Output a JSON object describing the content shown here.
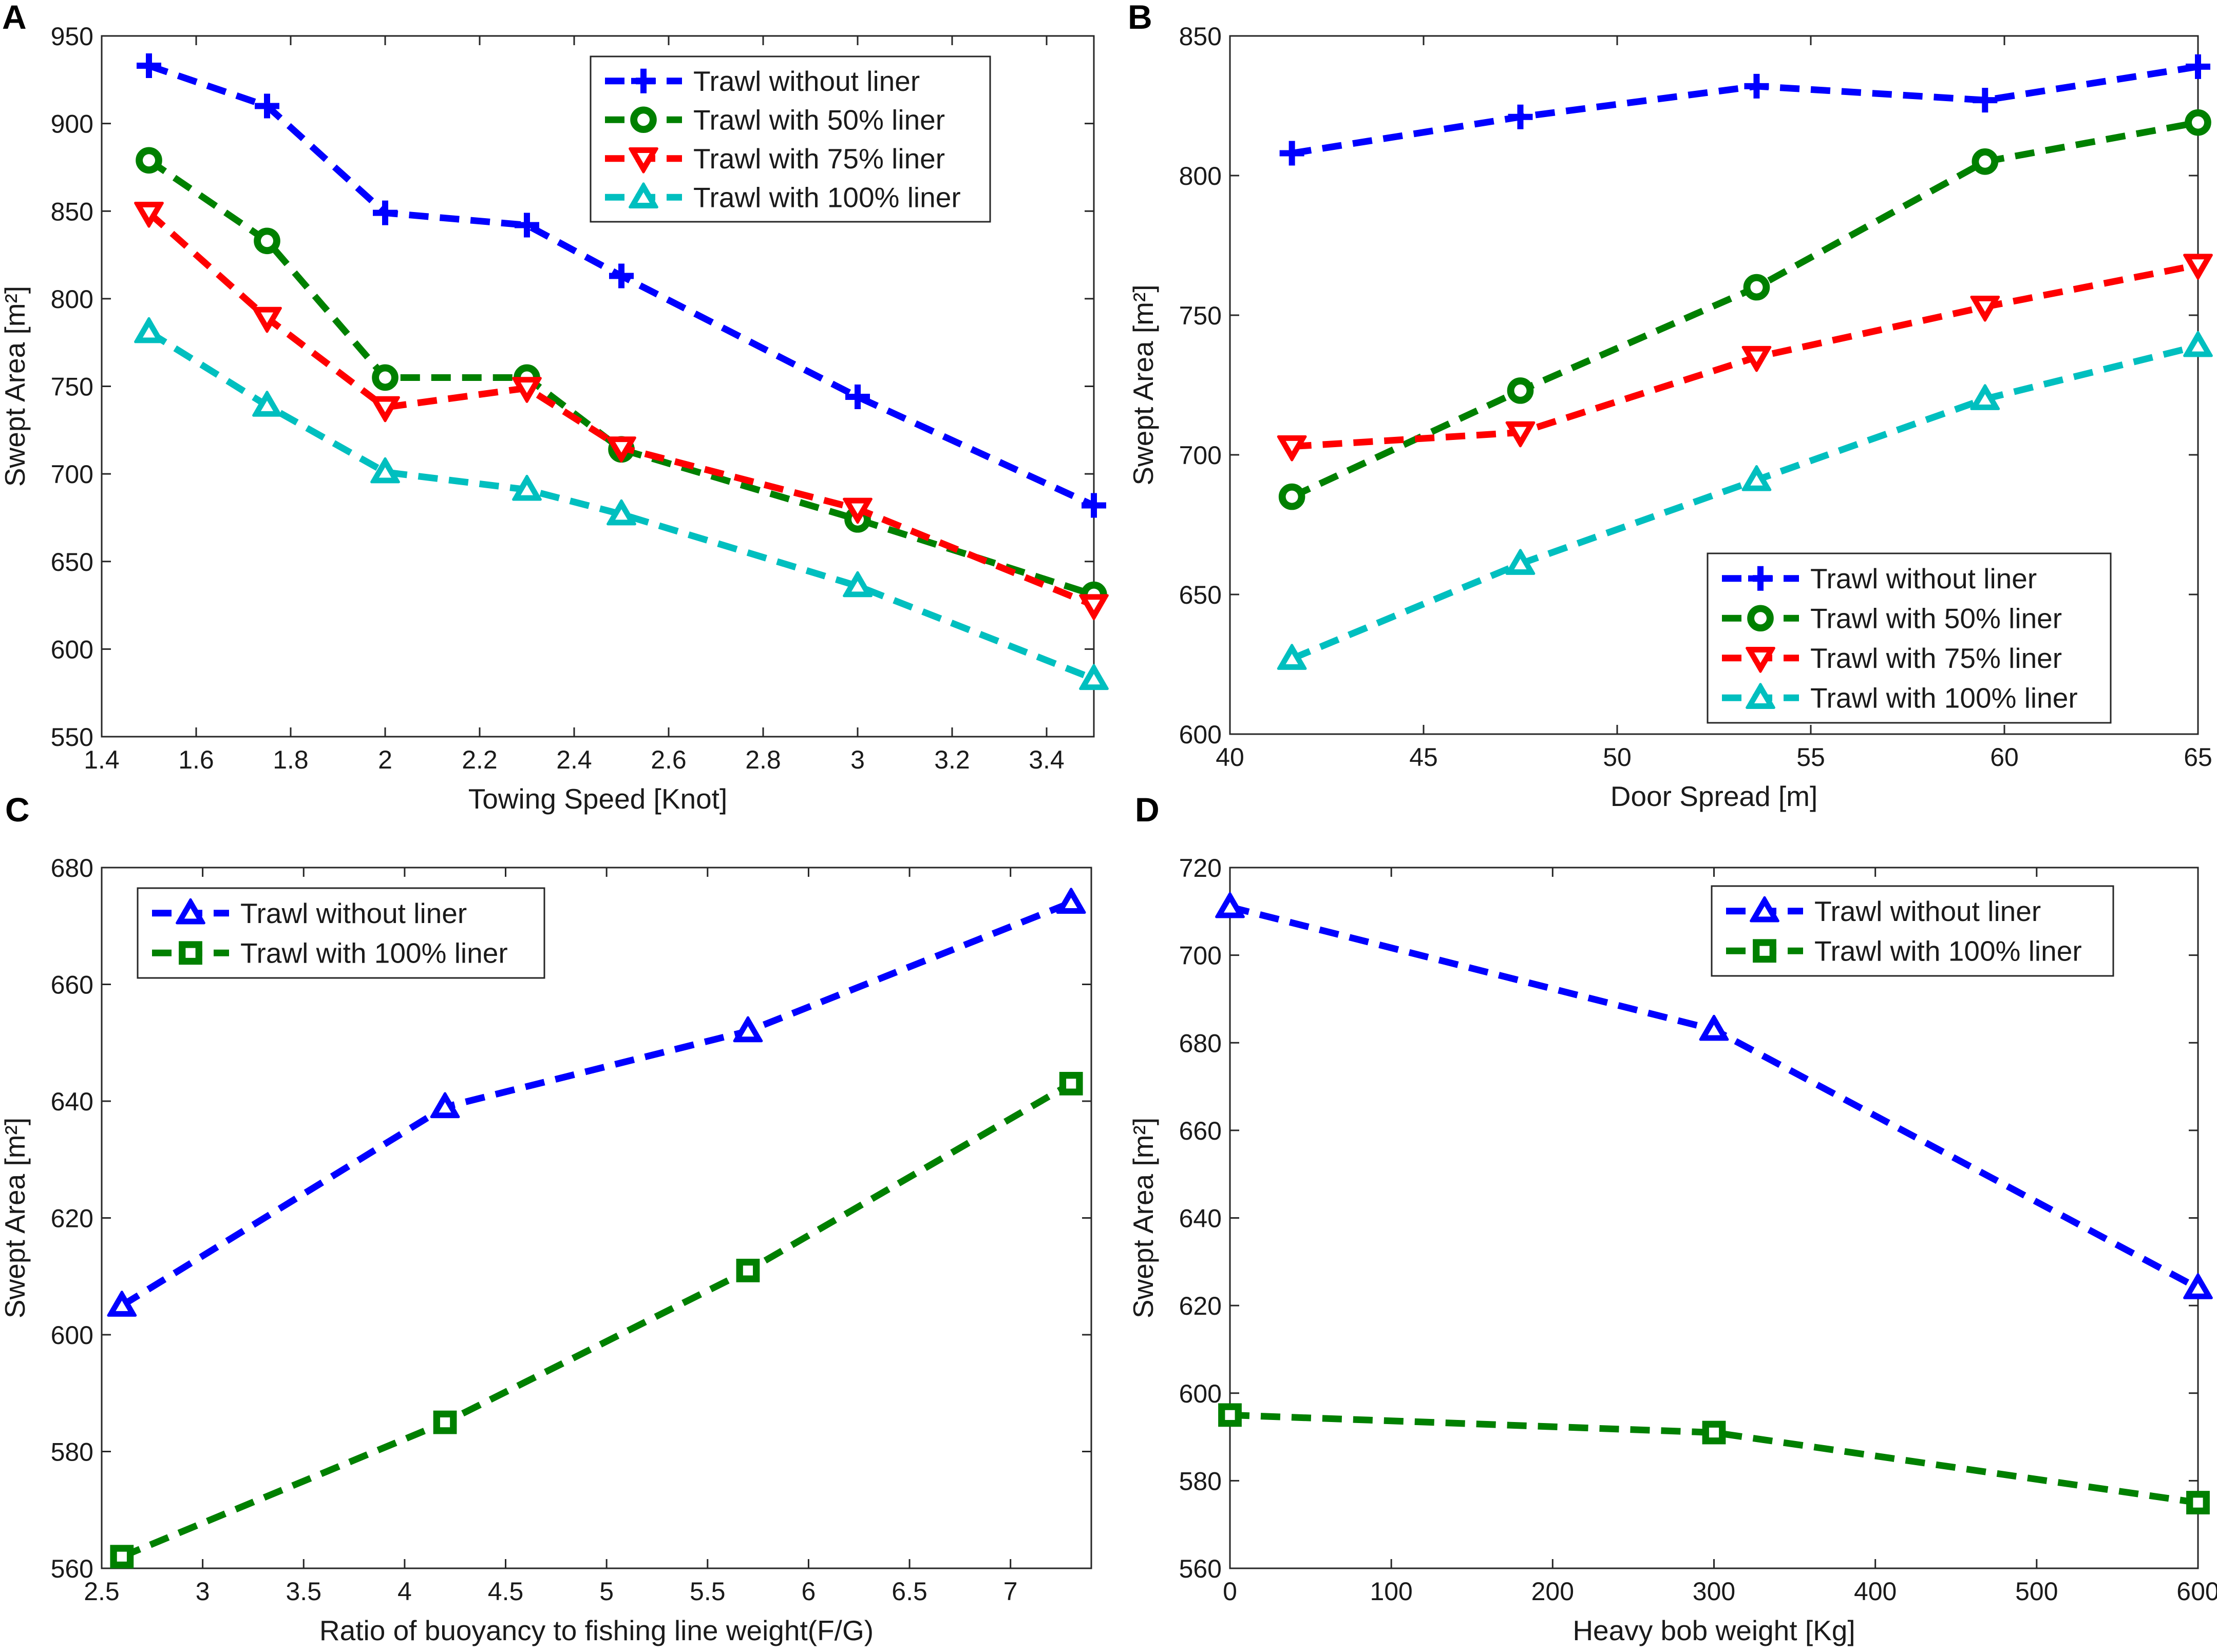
{
  "chart_data": [
    {
      "panel": "A",
      "type": "line",
      "xlabel": "Towing Speed [Knot]",
      "ylabel": "Swept Area [m²]",
      "xlim": [
        1.4,
        3.5
      ],
      "ylim": [
        550,
        950
      ],
      "xticks": [
        1.4,
        1.6,
        1.8,
        2,
        2.2,
        2.4,
        2.6,
        2.8,
        3,
        3.2,
        3.4
      ],
      "yticks": [
        550,
        600,
        650,
        700,
        750,
        800,
        850,
        900,
        950
      ],
      "legend_position": "top-right",
      "x": [
        1.5,
        1.75,
        2,
        2.3,
        2.5,
        3,
        3.5
      ],
      "series": [
        {
          "name": "Trawl without liner",
          "color": "#0000ff",
          "marker": "plus",
          "values": [
            933,
            910,
            849,
            842,
            813,
            744,
            682
          ]
        },
        {
          "name": "Trawl with 50% liner",
          "color": "#008000",
          "marker": "circle",
          "values": [
            879,
            833,
            755,
            755,
            714,
            674,
            631
          ]
        },
        {
          "name": "Trawl with 75% liner",
          "color": "#ff0000",
          "marker": "triangle-down",
          "values": [
            849,
            789,
            738,
            749,
            715,
            680,
            625
          ]
        },
        {
          "name": "Trawl with 100% liner",
          "color": "#00bfbf",
          "marker": "triangle-up",
          "values": [
            781,
            739,
            701,
            691,
            677,
            636,
            583
          ]
        }
      ]
    },
    {
      "panel": "B",
      "type": "line",
      "xlabel": "Door Spread [m]",
      "ylabel": "Swept Area [m²]",
      "xlim": [
        40,
        65
      ],
      "ylim": [
        600,
        850
      ],
      "xticks": [
        40,
        45,
        50,
        55,
        60,
        65
      ],
      "yticks": [
        600,
        650,
        700,
        750,
        800,
        850
      ],
      "legend_position": "bottom-right",
      "x": [
        41.6,
        47.5,
        53.6,
        59.5,
        65
      ],
      "series": [
        {
          "name": "Trawl without liner",
          "color": "#0000ff",
          "marker": "plus",
          "values": [
            808,
            821,
            832,
            827,
            839
          ]
        },
        {
          "name": "Trawl with 50% liner",
          "color": "#008000",
          "marker": "circle",
          "values": [
            685,
            723,
            760,
            805,
            819
          ]
        },
        {
          "name": "Trawl with 75% liner",
          "color": "#ff0000",
          "marker": "triangle-down",
          "values": [
            703,
            708,
            735,
            753,
            768
          ]
        },
        {
          "name": "Trawl with 100% liner",
          "color": "#00bfbf",
          "marker": "triangle-up",
          "values": [
            627,
            661,
            691,
            720,
            739
          ]
        }
      ]
    },
    {
      "panel": "C",
      "type": "line",
      "xlabel": "Ratio of buoyancy to fishing line weight(F/G)",
      "ylabel": "Swept Area [m²]",
      "xlim": [
        2.5,
        7.4
      ],
      "ylim": [
        560,
        680
      ],
      "xticks": [
        2.5,
        3,
        3.5,
        4,
        4.5,
        5,
        5.5,
        6,
        6.5,
        7
      ],
      "yticks": [
        560,
        580,
        600,
        620,
        640,
        660,
        680
      ],
      "legend_position": "top-left",
      "x": [
        2.6,
        4.2,
        5.7,
        7.3
      ],
      "series": [
        {
          "name": "Trawl without liner",
          "color": "#0000ff",
          "marker": "triangle-up",
          "values": [
            605,
            639,
            652,
            674
          ]
        },
        {
          "name": "Trawl with 100% liner",
          "color": "#008000",
          "marker": "square",
          "values": [
            562,
            585,
            611,
            643
          ]
        }
      ]
    },
    {
      "panel": "D",
      "type": "line",
      "xlabel": "Heavy bob weight [Kg]",
      "ylabel": "Swept Area [m²]",
      "xlim": [
        0,
        600
      ],
      "ylim": [
        560,
        720
      ],
      "xticks": [
        0,
        100,
        200,
        300,
        400,
        500,
        600
      ],
      "yticks": [
        560,
        580,
        600,
        620,
        640,
        660,
        680,
        700,
        720
      ],
      "legend_position": "top-right",
      "x": [
        0,
        300,
        600
      ],
      "series": [
        {
          "name": "Trawl without liner",
          "color": "#0000ff",
          "marker": "triangle-up",
          "values": [
            711,
            683,
            624
          ]
        },
        {
          "name": "Trawl with 100% liner",
          "color": "#008000",
          "marker": "square",
          "values": [
            595,
            591,
            575
          ]
        }
      ]
    }
  ]
}
